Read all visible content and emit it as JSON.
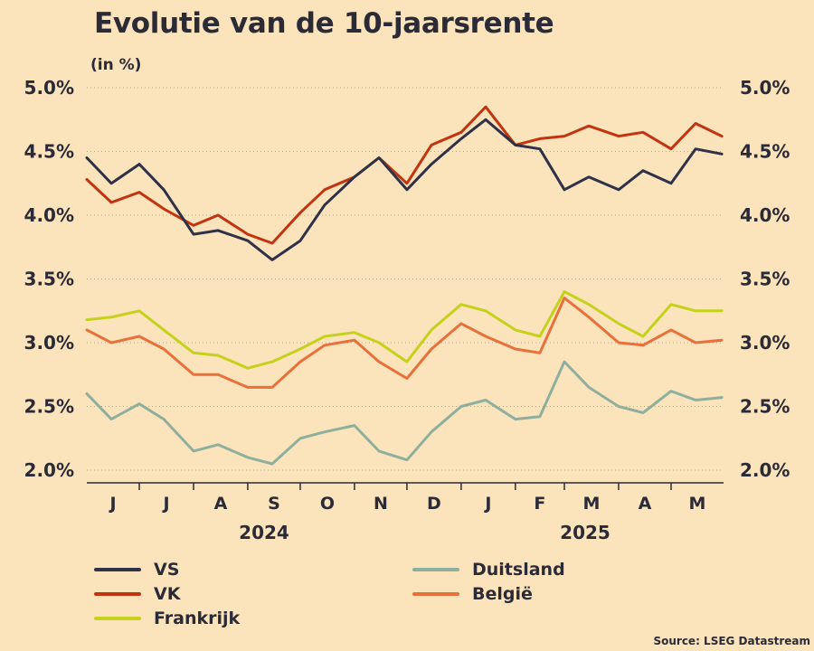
{
  "title": "Evolutie van de 10-jaarsrente",
  "subtitle": "(in %)",
  "source": "Source: LSEG Datastream",
  "chart_data": {
    "type": "line",
    "title": "Evolutie van de 10-jaarsrente",
    "subtitle": "(in %)",
    "ylim": [
      2.0,
      5.0
    ],
    "yticks": [
      "5.0%",
      "4.5%",
      "4.0%",
      "3.5%",
      "3.0%",
      "2.5%",
      "2.0%"
    ],
    "yticks_values": [
      5.0,
      4.5,
      4.0,
      3.5,
      3.0,
      2.5,
      2.0
    ],
    "x_month_labels": [
      "J",
      "J",
      "A",
      "S",
      "O",
      "N",
      "D",
      "J",
      "F",
      "M",
      "A",
      "M"
    ],
    "x_year_labels": [
      "2024",
      "2025"
    ],
    "x_months": [
      "2024-06",
      "2024-07",
      "2024-08",
      "2024-09",
      "2024-10",
      "2024-11",
      "2024-12",
      "2025-01",
      "2025-02",
      "2025-03",
      "2025-04",
      "2025-05"
    ],
    "grid": true,
    "legend_position": "bottom",
    "x": [
      "2024-06-01",
      "2024-06-15",
      "2024-07-01",
      "2024-07-15",
      "2024-08-01",
      "2024-08-15",
      "2024-09-01",
      "2024-09-15",
      "2024-10-01",
      "2024-10-15",
      "2024-11-01",
      "2024-11-15",
      "2024-12-01",
      "2024-12-15",
      "2025-01-01",
      "2025-01-15",
      "2025-02-01",
      "2025-02-15",
      "2025-03-01",
      "2025-03-15",
      "2025-04-01",
      "2025-04-15",
      "2025-05-01",
      "2025-05-15",
      "2025-05-30"
    ],
    "series": [
      {
        "name": "VS",
        "color": "#2f3148",
        "values": [
          4.45,
          4.25,
          4.4,
          4.2,
          3.85,
          3.88,
          3.8,
          3.65,
          3.8,
          4.08,
          4.3,
          4.45,
          4.2,
          4.4,
          4.6,
          4.75,
          4.55,
          4.52,
          4.2,
          4.3,
          4.2,
          4.35,
          4.25,
          4.52,
          4.48
        ]
      },
      {
        "name": "VK",
        "color": "#c2340f",
        "values": [
          4.28,
          4.1,
          4.18,
          4.05,
          3.92,
          4.0,
          3.85,
          3.78,
          4.02,
          4.2,
          4.3,
          4.45,
          4.25,
          4.55,
          4.65,
          4.85,
          4.55,
          4.6,
          4.62,
          4.7,
          4.62,
          4.65,
          4.52,
          4.72,
          4.62
        ]
      },
      {
        "name": "Frankrijk",
        "color": "#c5d11a",
        "values": [
          3.18,
          3.2,
          3.25,
          3.1,
          2.92,
          2.9,
          2.8,
          2.85,
          2.95,
          3.05,
          3.08,
          3.0,
          2.85,
          3.1,
          3.3,
          3.25,
          3.1,
          3.05,
          3.4,
          3.3,
          3.15,
          3.05,
          3.3,
          3.25,
          3.25
        ]
      },
      {
        "name": "Duitsland",
        "color": "#8eaf9d",
        "values": [
          2.6,
          2.4,
          2.52,
          2.4,
          2.15,
          2.2,
          2.1,
          2.05,
          2.25,
          2.3,
          2.35,
          2.15,
          2.08,
          2.3,
          2.5,
          2.55,
          2.4,
          2.42,
          2.85,
          2.65,
          2.5,
          2.45,
          2.62,
          2.55,
          2.57
        ]
      },
      {
        "name": "België",
        "color": "#e8703a",
        "values": [
          3.1,
          3.0,
          3.05,
          2.95,
          2.75,
          2.75,
          2.65,
          2.65,
          2.85,
          2.98,
          3.02,
          2.85,
          2.72,
          2.95,
          3.15,
          3.05,
          2.95,
          2.92,
          3.35,
          3.2,
          3.0,
          2.98,
          3.1,
          3.0,
          3.02
        ]
      }
    ]
  },
  "legend": {
    "items": [
      {
        "label": "VS",
        "color": "#2f3148"
      },
      {
        "label": "VK",
        "color": "#c2340f"
      },
      {
        "label": "Frankrijk",
        "color": "#c5d11a"
      },
      {
        "label": "Duitsland",
        "color": "#8eaf9d"
      },
      {
        "label": "België",
        "color": "#e8703a"
      }
    ]
  }
}
